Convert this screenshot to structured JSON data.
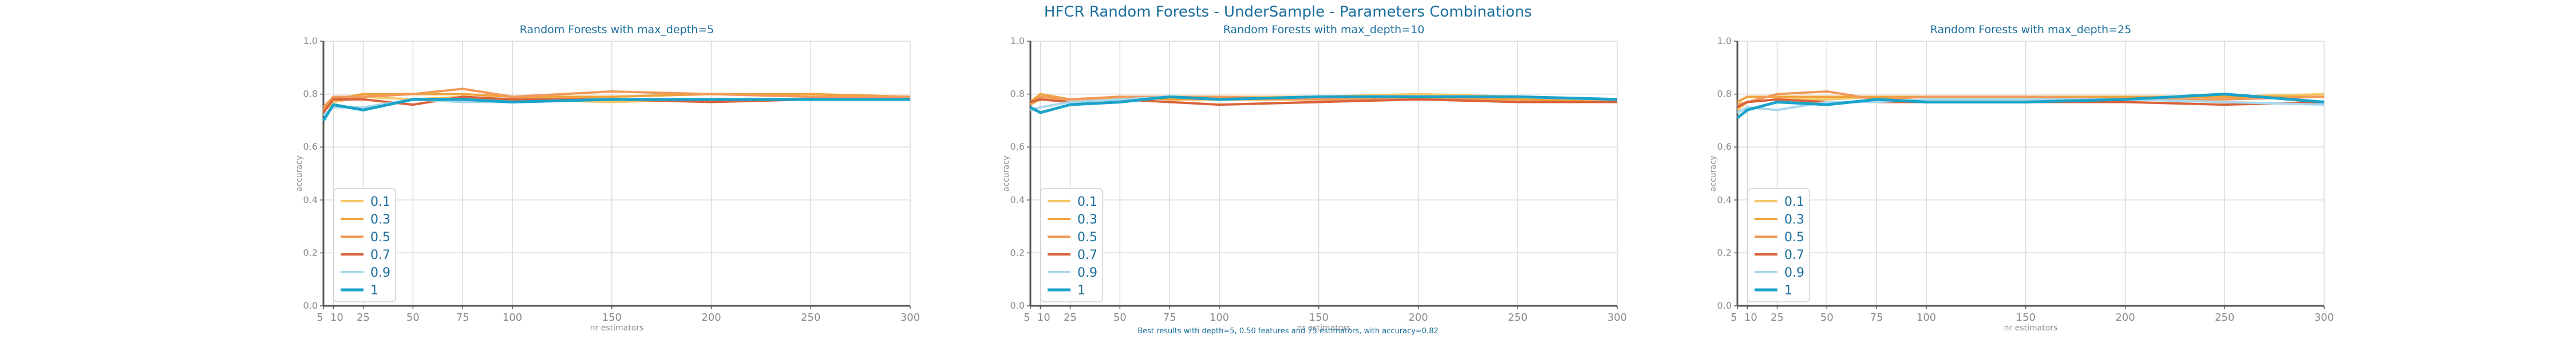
{
  "suptitle": "HFCR Random Forests - UnderSample - Parameters Combinations",
  "footnote": "Best results with depth=5, 0.50 features and 75 estimators, with accuracy=0.82",
  "colors": {
    "title": "#1a6e9c",
    "axis_text": "#8a8a8a",
    "grid": "#d9d9d9",
    "spine": "#555555",
    "legend_text": "#1a6e9c",
    "series": [
      "#f5c96a",
      "#efa33c",
      "#f09a5a",
      "#d9623a",
      "#a9d6ec",
      "#1aa3c9"
    ]
  },
  "chart_data": [
    {
      "type": "line",
      "title": "Random Forests with max_depth=5",
      "xlabel": "nr estimators",
      "ylabel": "accuracy",
      "xlim": [
        5,
        300
      ],
      "ylim": [
        0.0,
        1.0
      ],
      "xticks": [
        5,
        10,
        25,
        50,
        75,
        100,
        150,
        200,
        250,
        300
      ],
      "yticks": [
        0.0,
        0.2,
        0.4,
        0.6,
        0.8,
        1.0
      ],
      "grid": true,
      "legend": "lower-left",
      "x": [
        5,
        10,
        25,
        50,
        75,
        100,
        150,
        200,
        250,
        300
      ],
      "series": [
        {
          "name": "0.1",
          "values": [
            0.7,
            0.77,
            0.79,
            0.78,
            0.79,
            0.78,
            0.77,
            0.78,
            0.78,
            0.78
          ]
        },
        {
          "name": "0.3",
          "values": [
            0.74,
            0.78,
            0.8,
            0.8,
            0.8,
            0.79,
            0.79,
            0.8,
            0.8,
            0.79
          ]
        },
        {
          "name": "0.5",
          "values": [
            0.75,
            0.79,
            0.79,
            0.8,
            0.82,
            0.79,
            0.81,
            0.8,
            0.79,
            0.79
          ]
        },
        {
          "name": "0.7",
          "values": [
            0.73,
            0.78,
            0.78,
            0.76,
            0.79,
            0.78,
            0.78,
            0.77,
            0.78,
            0.78
          ]
        },
        {
          "name": "0.9",
          "values": [
            0.72,
            0.75,
            0.75,
            0.78,
            0.77,
            0.77,
            0.78,
            0.78,
            0.78,
            0.78
          ]
        },
        {
          "name": "1",
          "values": [
            0.7,
            0.76,
            0.74,
            0.78,
            0.78,
            0.77,
            0.78,
            0.78,
            0.78,
            0.78
          ]
        }
      ]
    },
    {
      "type": "line",
      "title": "Random Forests with max_depth=10",
      "xlabel": "nr estimators",
      "ylabel": "accuracy",
      "xlim": [
        5,
        300
      ],
      "ylim": [
        0.0,
        1.0
      ],
      "xticks": [
        5,
        10,
        25,
        50,
        75,
        100,
        150,
        200,
        250,
        300
      ],
      "yticks": [
        0.0,
        0.2,
        0.4,
        0.6,
        0.8,
        1.0
      ],
      "grid": true,
      "legend": "lower-left",
      "x": [
        5,
        10,
        25,
        50,
        75,
        100,
        150,
        200,
        250,
        300
      ],
      "series": [
        {
          "name": "0.1",
          "values": [
            0.76,
            0.78,
            0.78,
            0.78,
            0.79,
            0.79,
            0.79,
            0.8,
            0.79,
            0.78
          ]
        },
        {
          "name": "0.3",
          "values": [
            0.77,
            0.8,
            0.78,
            0.79,
            0.78,
            0.78,
            0.78,
            0.78,
            0.78,
            0.77
          ]
        },
        {
          "name": "0.5",
          "values": [
            0.76,
            0.79,
            0.78,
            0.79,
            0.79,
            0.79,
            0.78,
            0.78,
            0.79,
            0.78
          ]
        },
        {
          "name": "0.7",
          "values": [
            0.77,
            0.78,
            0.77,
            0.78,
            0.77,
            0.76,
            0.77,
            0.78,
            0.77,
            0.77
          ]
        },
        {
          "name": "0.9",
          "values": [
            0.74,
            0.75,
            0.77,
            0.78,
            0.79,
            0.78,
            0.79,
            0.79,
            0.79,
            0.78
          ]
        },
        {
          "name": "1",
          "values": [
            0.75,
            0.73,
            0.76,
            0.77,
            0.79,
            0.78,
            0.79,
            0.79,
            0.79,
            0.78
          ]
        }
      ]
    },
    {
      "type": "line",
      "title": "Random Forests with max_depth=25",
      "xlabel": "nr estimators",
      "ylabel": "accuracy",
      "xlim": [
        5,
        300
      ],
      "ylim": [
        0.0,
        1.0
      ],
      "xticks": [
        5,
        10,
        25,
        50,
        75,
        100,
        150,
        200,
        250,
        300
      ],
      "yticks": [
        0.0,
        0.2,
        0.4,
        0.6,
        0.8,
        1.0
      ],
      "grid": true,
      "legend": "lower-left",
      "x": [
        5,
        10,
        25,
        50,
        75,
        100,
        150,
        200,
        250,
        300
      ],
      "series": [
        {
          "name": "0.1",
          "values": [
            0.74,
            0.77,
            0.78,
            0.78,
            0.79,
            0.79,
            0.79,
            0.79,
            0.79,
            0.8
          ]
        },
        {
          "name": "0.3",
          "values": [
            0.77,
            0.79,
            0.79,
            0.79,
            0.79,
            0.79,
            0.79,
            0.79,
            0.79,
            0.79
          ]
        },
        {
          "name": "0.5",
          "values": [
            0.76,
            0.77,
            0.8,
            0.81,
            0.78,
            0.79,
            0.79,
            0.78,
            0.78,
            0.79
          ]
        },
        {
          "name": "0.7",
          "values": [
            0.75,
            0.77,
            0.78,
            0.77,
            0.77,
            0.77,
            0.77,
            0.77,
            0.76,
            0.77
          ]
        },
        {
          "name": "0.9",
          "values": [
            0.73,
            0.75,
            0.74,
            0.77,
            0.77,
            0.78,
            0.78,
            0.78,
            0.77,
            0.76
          ]
        },
        {
          "name": "1",
          "values": [
            0.71,
            0.74,
            0.77,
            0.76,
            0.78,
            0.77,
            0.77,
            0.78,
            0.8,
            0.77
          ]
        }
      ]
    }
  ]
}
